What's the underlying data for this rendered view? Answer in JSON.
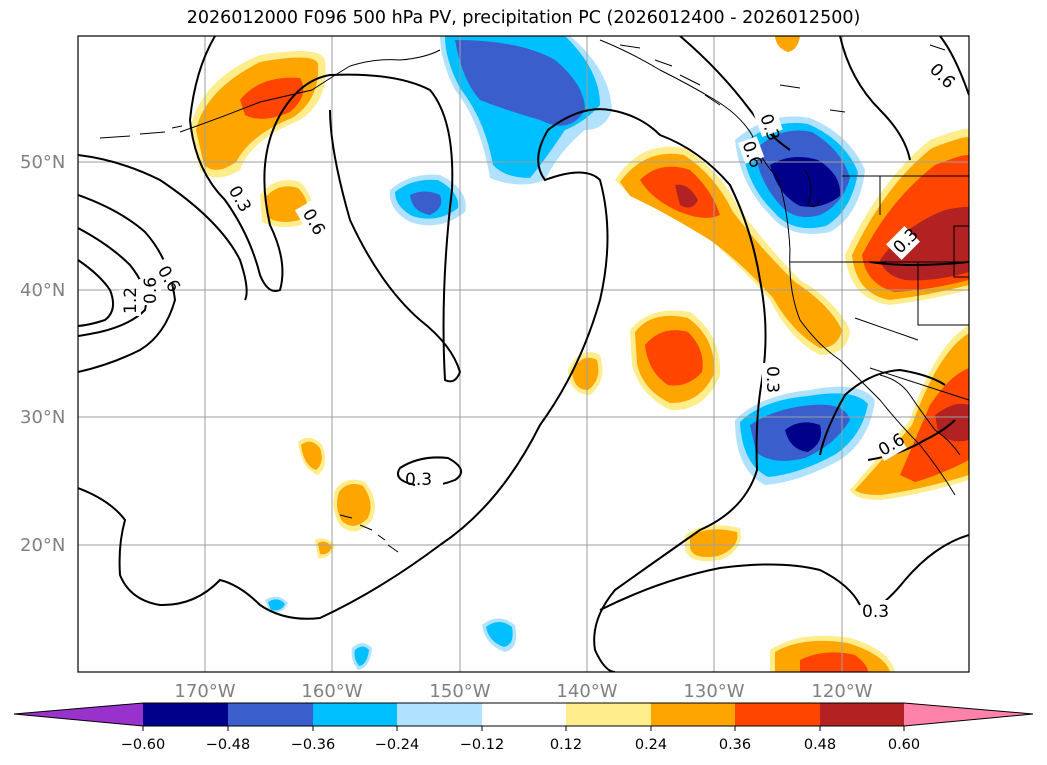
{
  "title": "2026012000 F096 500 hPa PV, precipitation PC (2026012400 - 2026012500)",
  "map": {
    "lat_labels": [
      "50°N",
      "40°N",
      "30°N",
      "20°N"
    ],
    "lon_labels": [
      "170°W",
      "160°W",
      "150°W",
      "140°W",
      "130°W",
      "120°W"
    ],
    "contour_labels": [
      "0.3",
      "0.6",
      "0.3",
      "0.6",
      "0.6",
      "1.2",
      "0.3",
      "0.6",
      "0.3",
      "0.3",
      "0.6",
      "0.3",
      "0.6"
    ]
  },
  "colorbar": {
    "ticks": [
      "−0.60",
      "−0.48",
      "−0.36",
      "−0.24",
      "−0.12",
      "0.12",
      "0.24",
      "0.36",
      "0.48",
      "0.60"
    ],
    "colors": {
      "under": "#9932cc",
      "neg060": "#00008b",
      "neg048": "#3a5fcd",
      "neg036": "#00bfff",
      "neg024": "#b0e2ff",
      "neutral": "#ffffff",
      "pos012": "#ffec8b",
      "pos024": "#ffa500",
      "pos036": "#ff4500",
      "pos048": "#b22222",
      "over": "#ff82ab"
    }
  }
}
